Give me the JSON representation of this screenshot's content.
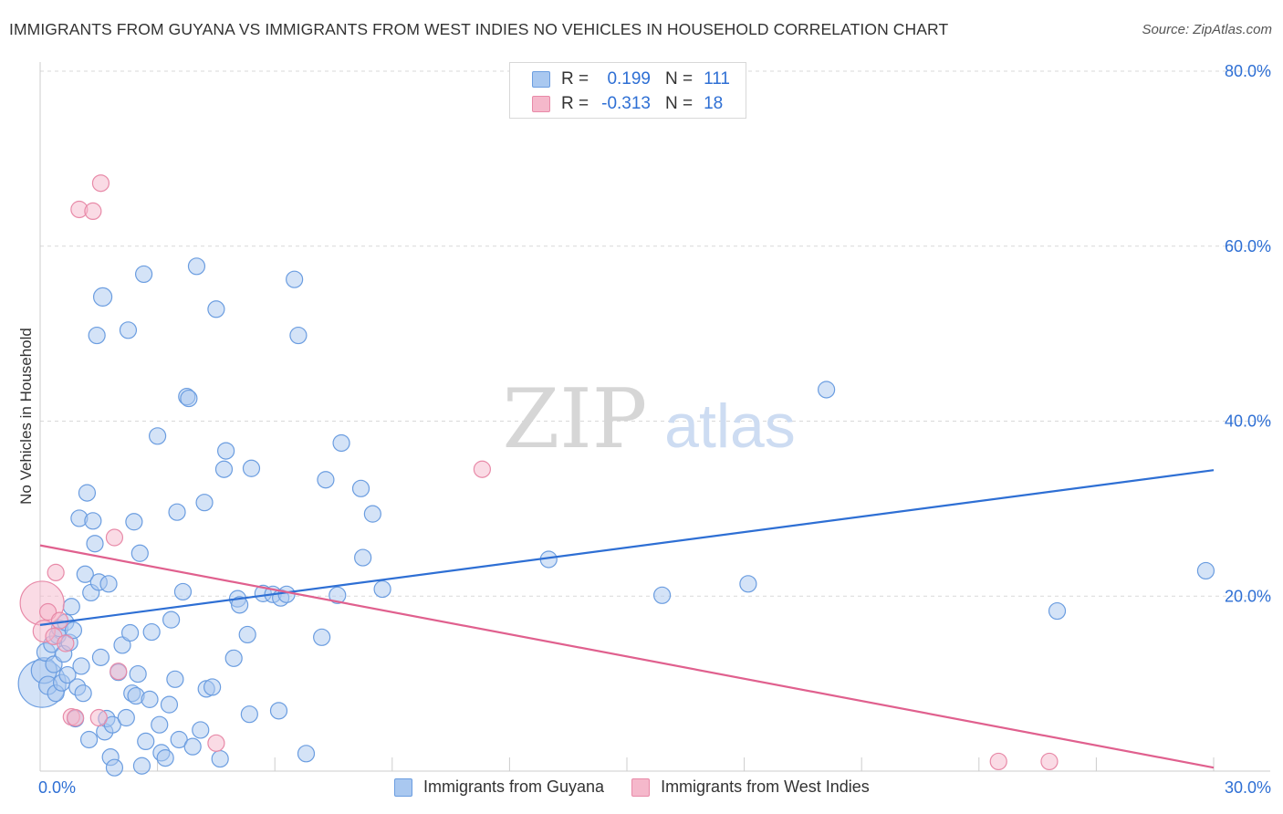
{
  "title": "IMMIGRANTS FROM GUYANA VS IMMIGRANTS FROM WEST INDIES NO VEHICLES IN HOUSEHOLD CORRELATION CHART",
  "source": "Source: ZipAtlas.com",
  "watermark": {
    "zip": "ZIP",
    "atlas": "atlas"
  },
  "legend": {
    "rows": [
      {
        "r_label": "R =",
        "r_value": "0.199",
        "n_label": "N =",
        "n_value": "111"
      },
      {
        "r_label": "R =",
        "r_value": "-0.313",
        "n_label": "N =",
        "n_value": "18"
      }
    ]
  },
  "bottom_legend": {
    "guyana": "Immigrants from Guyana",
    "west_indies": "Immigrants from West Indies"
  },
  "colors": {
    "blue_fill": "#a9c8f0",
    "blue_stroke": "#6b9de0",
    "blue_line": "#2e6fd4",
    "pink_fill": "#f5b8cb",
    "pink_stroke": "#e88aa8",
    "pink_line": "#e0608e",
    "axis_text": "#2e6fd4",
    "grid": "#d9d9d9"
  },
  "chart_data": {
    "type": "scatter",
    "title": "IMMIGRANTS FROM GUYANA VS IMMIGRANTS FROM WEST INDIES NO VEHICLES IN HOUSEHOLD CORRELATION CHART",
    "xlabel": "",
    "ylabel": "No Vehicles in Household",
    "xlim": [
      0,
      30
    ],
    "ylim": [
      0,
      80
    ],
    "x_tick_labels": [
      "0.0%",
      "30.0%"
    ],
    "y_ticks": [
      20,
      40,
      60,
      80
    ],
    "y_tick_labels": [
      "20.0%",
      "40.0%",
      "60.0%",
      "80.0%"
    ],
    "series": [
      {
        "name": "Immigrants from Guyana",
        "R": 0.199,
        "N": 111,
        "trend": {
          "x": [
            0,
            30
          ],
          "y": [
            16.7,
            34.4
          ]
        },
        "points": [
          [
            0.05,
            10.0,
            26
          ],
          [
            0.1,
            11.5,
            14
          ],
          [
            0.15,
            13.6,
            10
          ],
          [
            0.2,
            9.8,
            10
          ],
          [
            0.3,
            14.5,
            9
          ],
          [
            0.35,
            12.2,
            9
          ],
          [
            0.4,
            8.9,
            9
          ],
          [
            0.45,
            15.5,
            9
          ],
          [
            0.5,
            16.3,
            9
          ],
          [
            0.55,
            10.1,
            9
          ],
          [
            0.6,
            13.4,
            9
          ],
          [
            0.65,
            17.0,
            9
          ],
          [
            0.7,
            11.0,
            9
          ],
          [
            0.75,
            14.7,
            9
          ],
          [
            0.8,
            18.8,
            9
          ],
          [
            0.85,
            16.1,
            9
          ],
          [
            0.9,
            6.0,
            9
          ],
          [
            0.95,
            9.6,
            9
          ],
          [
            1.0,
            28.9,
            9
          ],
          [
            1.05,
            12.0,
            9
          ],
          [
            1.1,
            8.9,
            9
          ],
          [
            1.15,
            22.5,
            9
          ],
          [
            1.2,
            31.8,
            9
          ],
          [
            1.25,
            3.6,
            9
          ],
          [
            1.3,
            20.4,
            9
          ],
          [
            1.35,
            28.6,
            9
          ],
          [
            1.4,
            26.0,
            9
          ],
          [
            1.45,
            49.8,
            9
          ],
          [
            1.5,
            21.6,
            9
          ],
          [
            1.55,
            13.0,
            9
          ],
          [
            1.6,
            54.2,
            10
          ],
          [
            1.65,
            4.5,
            9
          ],
          [
            1.7,
            6.0,
            9
          ],
          [
            1.75,
            21.4,
            9
          ],
          [
            1.8,
            1.6,
            9
          ],
          [
            1.85,
            5.3,
            9
          ],
          [
            1.9,
            0.4,
            9
          ],
          [
            2.0,
            11.3,
            9
          ],
          [
            2.1,
            14.4,
            9
          ],
          [
            2.2,
            6.1,
            9
          ],
          [
            2.25,
            50.4,
            9
          ],
          [
            2.3,
            15.8,
            9
          ],
          [
            2.35,
            8.9,
            9
          ],
          [
            2.4,
            28.5,
            9
          ],
          [
            2.45,
            8.6,
            9
          ],
          [
            2.5,
            11.1,
            9
          ],
          [
            2.55,
            24.9,
            9
          ],
          [
            2.6,
            0.6,
            9
          ],
          [
            2.65,
            56.8,
            9
          ],
          [
            2.7,
            3.4,
            9
          ],
          [
            2.8,
            8.2,
            9
          ],
          [
            2.85,
            15.9,
            9
          ],
          [
            3.0,
            38.3,
            9
          ],
          [
            3.05,
            5.3,
            9
          ],
          [
            3.1,
            2.1,
            9
          ],
          [
            3.2,
            1.5,
            9
          ],
          [
            3.3,
            7.6,
            9
          ],
          [
            3.35,
            17.3,
            9
          ],
          [
            3.45,
            10.5,
            9
          ],
          [
            3.5,
            29.6,
            9
          ],
          [
            3.55,
            3.6,
            9
          ],
          [
            3.65,
            20.5,
            9
          ],
          [
            3.75,
            42.8,
            9
          ],
          [
            3.8,
            42.6,
            9
          ],
          [
            3.9,
            2.8,
            9
          ],
          [
            4.0,
            57.7,
            9
          ],
          [
            4.1,
            4.7,
            9
          ],
          [
            4.2,
            30.7,
            9
          ],
          [
            4.25,
            9.4,
            9
          ],
          [
            4.4,
            9.6,
            9
          ],
          [
            4.5,
            52.8,
            9
          ],
          [
            4.6,
            1.4,
            9
          ],
          [
            4.7,
            34.5,
            9
          ],
          [
            4.75,
            36.6,
            9
          ],
          [
            4.95,
            12.9,
            9
          ],
          [
            5.05,
            19.7,
            9
          ],
          [
            5.1,
            19.0,
            9
          ],
          [
            5.3,
            15.6,
            9
          ],
          [
            5.35,
            6.5,
            9
          ],
          [
            5.4,
            34.6,
            9
          ],
          [
            5.7,
            20.3,
            9
          ],
          [
            5.95,
            20.2,
            9
          ],
          [
            6.1,
            6.9,
            9
          ],
          [
            6.15,
            19.8,
            9
          ],
          [
            6.3,
            20.2,
            9
          ],
          [
            6.5,
            56.2,
            9
          ],
          [
            6.6,
            49.8,
            9
          ],
          [
            6.8,
            2.0,
            9
          ],
          [
            7.2,
            15.3,
            9
          ],
          [
            7.3,
            33.3,
            9
          ],
          [
            7.6,
            20.1,
            9
          ],
          [
            7.7,
            37.5,
            9
          ],
          [
            8.2,
            32.3,
            9
          ],
          [
            8.25,
            24.4,
            9
          ],
          [
            8.5,
            29.4,
            9
          ],
          [
            8.75,
            20.8,
            9
          ],
          [
            13.0,
            24.2,
            9
          ],
          [
            15.9,
            20.1,
            9
          ],
          [
            18.1,
            21.4,
            9
          ],
          [
            20.1,
            43.6,
            9
          ],
          [
            26.0,
            18.3,
            9
          ],
          [
            29.8,
            22.9,
            9
          ]
        ]
      },
      {
        "name": "Immigrants from West Indies",
        "R": -0.313,
        "N": 18,
        "trend": {
          "x": [
            0,
            30
          ],
          "y": [
            25.8,
            0.4
          ]
        },
        "points": [
          [
            0.05,
            19.2,
            24
          ],
          [
            0.1,
            16.0,
            12
          ],
          [
            0.2,
            18.2,
            9
          ],
          [
            0.35,
            15.4,
            9
          ],
          [
            0.4,
            22.7,
            9
          ],
          [
            0.5,
            17.2,
            9
          ],
          [
            0.65,
            14.6,
            9
          ],
          [
            0.8,
            6.2,
            9
          ],
          [
            0.9,
            6.1,
            9
          ],
          [
            1.0,
            64.2,
            9
          ],
          [
            1.35,
            64.0,
            9
          ],
          [
            1.5,
            6.1,
            9
          ],
          [
            1.55,
            67.2,
            9
          ],
          [
            1.9,
            26.7,
            9
          ],
          [
            2.0,
            11.4,
            9
          ],
          [
            4.5,
            3.2,
            9
          ],
          [
            11.3,
            34.5,
            9
          ],
          [
            24.5,
            1.1,
            9
          ],
          [
            25.8,
            1.1,
            9
          ]
        ]
      }
    ]
  }
}
